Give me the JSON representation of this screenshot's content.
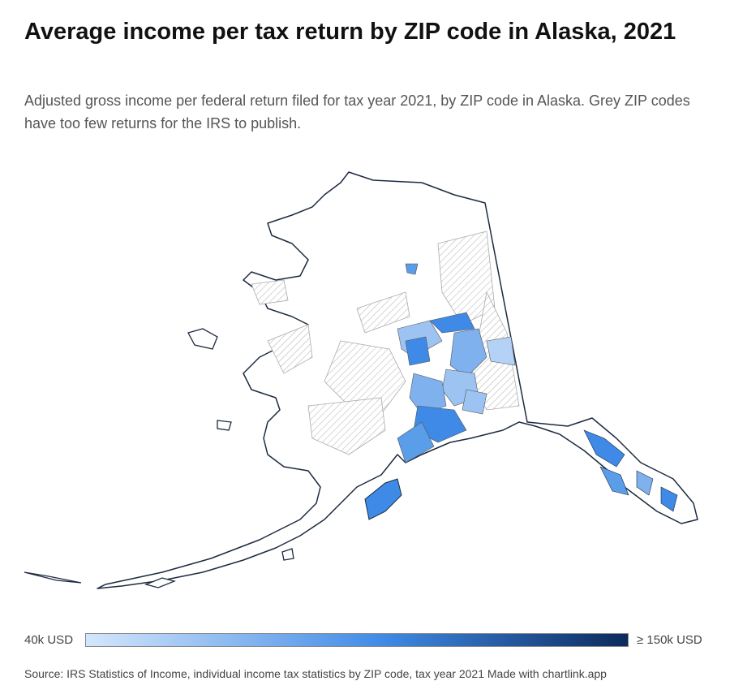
{
  "header": {
    "title": "Average income per tax return by ZIP code in Alaska, 2021",
    "subtitle": "Adjusted gross income per federal return filed for tax year 2021, by ZIP code in Alaska. Grey ZIP codes have too few returns for the IRS to publish."
  },
  "legend": {
    "min_label": "40k USD",
    "max_label": "≥ 150k USD"
  },
  "footer": {
    "source": "Source: IRS Statistics of Income, individual income tax statistics by ZIP code, tax year 2021",
    "credit": "Made with chartlink.app"
  }
}
